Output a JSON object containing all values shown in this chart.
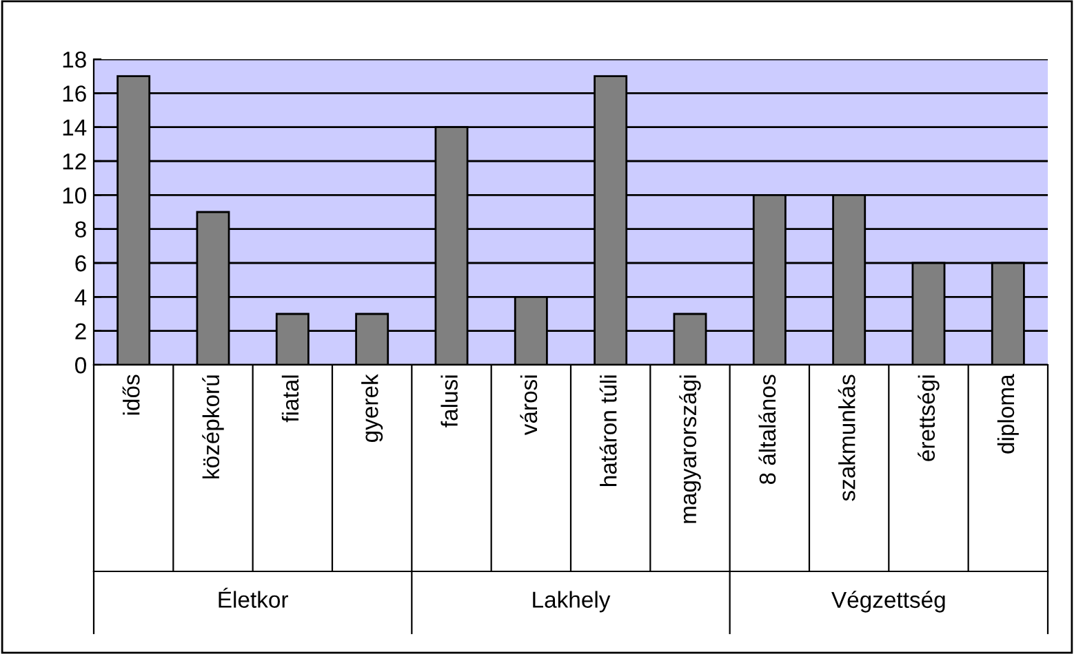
{
  "chart_data": {
    "type": "bar",
    "categories": [
      "idős",
      "középkorú",
      "fiatal",
      "gyerek",
      "falusi",
      "városi",
      "határon túli",
      "magyarországi",
      "8 általános",
      "szakmunkás",
      "érettségi",
      "diploma"
    ],
    "values": [
      17,
      9,
      3,
      3,
      14,
      4,
      17,
      3,
      10,
      10,
      6,
      6
    ],
    "color": "#808080",
    "ylim": [
      0,
      18
    ],
    "yticks": [
      0,
      2,
      4,
      6,
      8,
      10,
      12,
      14,
      16,
      18
    ],
    "grid": "y",
    "legend": false,
    "annotations": [
      "Életkor",
      "Lakhely",
      "Végzettség"
    ]
  }
}
